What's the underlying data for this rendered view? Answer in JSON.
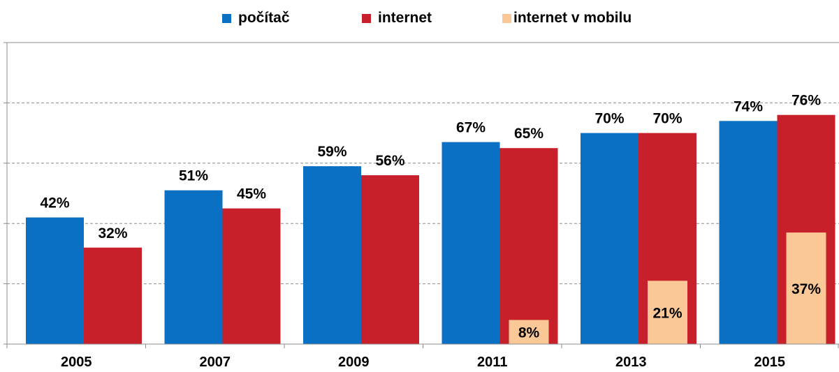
{
  "chart_data": {
    "type": "bar",
    "categories": [
      "2005",
      "2007",
      "2009",
      "2011",
      "2013",
      "2015"
    ],
    "series": [
      {
        "name": "počítač",
        "values": [
          42,
          51,
          59,
          67,
          70,
          74
        ],
        "labels": [
          "42%",
          "51%",
          "59%",
          "67%",
          "70%",
          "74%"
        ],
        "color": "#0A70C4"
      },
      {
        "name": "internet",
        "values": [
          32,
          45,
          56,
          65,
          70,
          76
        ],
        "labels": [
          "32%",
          "45%",
          "56%",
          "65%",
          "70%",
          "76%"
        ],
        "color": "#C8202A"
      },
      {
        "name": "internet v mobilu",
        "values": [
          null,
          null,
          null,
          8,
          21,
          37
        ],
        "labels": [
          "",
          "",
          "",
          "8%",
          "21%",
          "37%"
        ],
        "color": "#FAC896"
      }
    ],
    "ylim": [
      0,
      100
    ],
    "grid": true,
    "legend_position": "top"
  }
}
